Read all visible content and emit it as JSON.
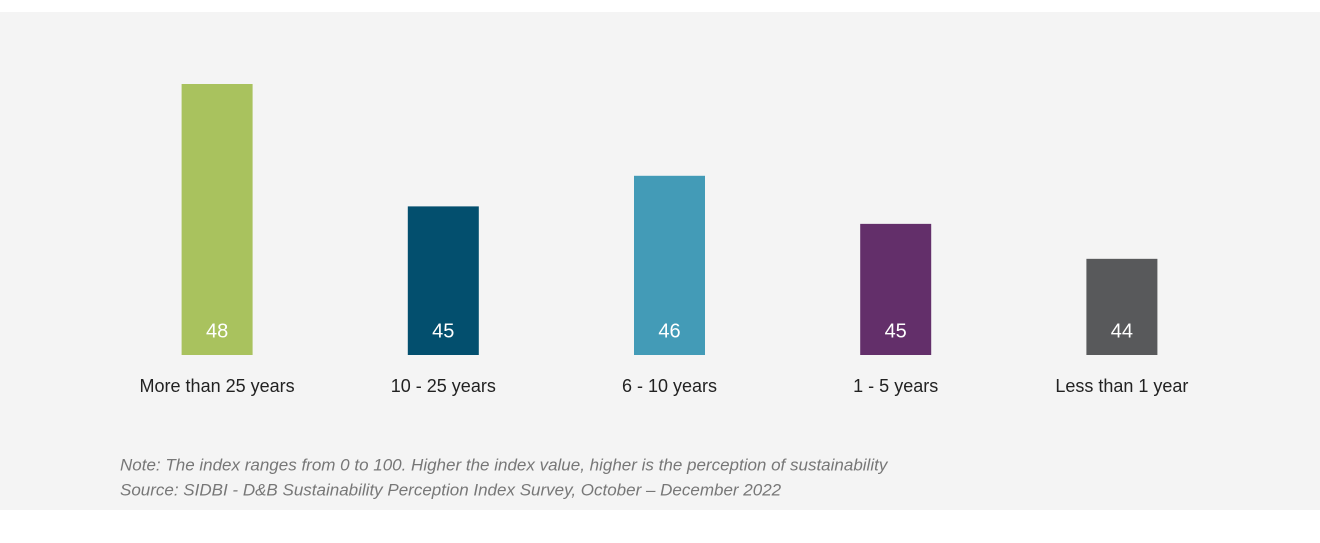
{
  "chart_data": {
    "type": "bar",
    "categories": [
      "More than 25 years",
      "10 - 25 years",
      "6 - 10 years",
      "1 - 5 years",
      "Less than 1 year"
    ],
    "values": [
      48.0,
      45.2,
      45.9,
      44.8,
      44.0
    ],
    "value_labels": [
      "48",
      "45",
      "46",
      "45",
      "44"
    ],
    "colors": [
      "#a9c25e",
      "#034f6e",
      "#439bb7",
      "#632f6a",
      "#58595b"
    ],
    "ylim": [
      41.8,
      48.0
    ],
    "notes": [
      "Note: The index ranges from 0 to 100. Higher the index value, higher is the perception of sustainability",
      "Source: SIDBI - D&B Sustainability Perception Index Survey, October – December 2022"
    ]
  }
}
